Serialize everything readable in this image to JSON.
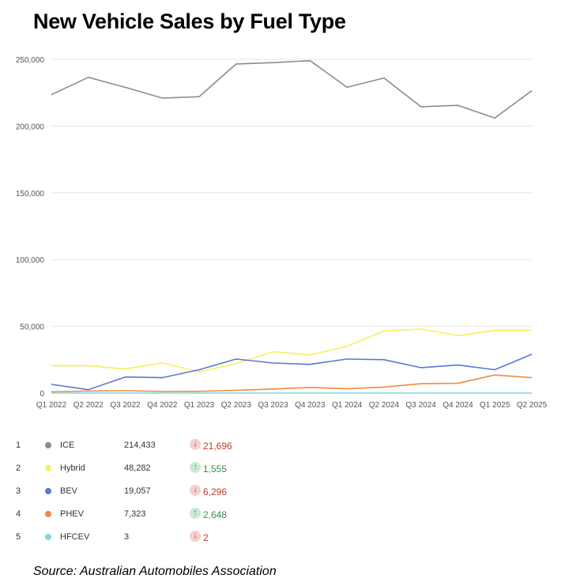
{
  "chart_data": {
    "type": "line",
    "title": "New Vehicle Sales by Fuel Type",
    "categories": [
      "Q1 2022",
      "Q2 2022",
      "Q3 2022",
      "Q4 2022",
      "Q1 2023",
      "Q2 2023",
      "Q3 2023",
      "Q4 2023",
      "Q1 2024",
      "Q2 2024",
      "Q3 2024",
      "Q4 2024",
      "Q1 2025",
      "Q2 2025"
    ],
    "y_ticks": [
      "0",
      "50,000",
      "100,000",
      "150,000",
      "200,000",
      "250,000"
    ],
    "ylim": [
      0,
      250000
    ],
    "grid": true,
    "series": [
      {
        "name": "ICE",
        "color": "#8c8c8c",
        "values": [
          223500,
          236500,
          229000,
          221000,
          222000,
          246500,
          247500,
          249000,
          229000,
          236000,
          214500,
          215500,
          206000,
          226500
        ]
      },
      {
        "name": "Hybrid",
        "color": "#f7f05a",
        "values": [
          20500,
          20500,
          18000,
          22500,
          16000,
          22000,
          31000,
          28500,
          35000,
          46500,
          48000,
          43000,
          47000,
          47000
        ]
      },
      {
        "name": "BEV",
        "color": "#5b77d6",
        "values": [
          6500,
          2500,
          12000,
          11500,
          17500,
          25500,
          22500,
          21500,
          25500,
          25000,
          19000,
          21000,
          17500,
          29000
        ]
      },
      {
        "name": "PHEV",
        "color": "#f5893e",
        "values": [
          900,
          1500,
          1800,
          1200,
          1300,
          2000,
          3000,
          4200,
          3200,
          4500,
          7000,
          7300,
          13500,
          11500
        ]
      },
      {
        "name": "HFCEV",
        "color": "#7fd9de",
        "values": [
          3,
          3,
          3,
          3,
          3,
          3,
          3,
          3,
          3,
          3,
          3,
          3,
          3,
          3
        ]
      }
    ]
  },
  "legend": [
    {
      "rank": "1",
      "name": "ICE",
      "color": "#8c8c8c",
      "value": "214,433",
      "direction": "down",
      "change": "21,696"
    },
    {
      "rank": "2",
      "name": "Hybrid",
      "color": "#f7f05a",
      "value": "48,282",
      "direction": "up",
      "change": "1,555"
    },
    {
      "rank": "3",
      "name": "BEV",
      "color": "#5b77d6",
      "value": "19,057",
      "direction": "down",
      "change": "6,296"
    },
    {
      "rank": "4",
      "name": "PHEV",
      "color": "#f5893e",
      "value": "7,323",
      "direction": "up",
      "change": "2,648"
    },
    {
      "rank": "5",
      "name": "HFCEV",
      "color": "#7fd9de",
      "value": "3",
      "direction": "down",
      "change": "2"
    }
  ],
  "source": "Source: Australian Automobiles Association"
}
